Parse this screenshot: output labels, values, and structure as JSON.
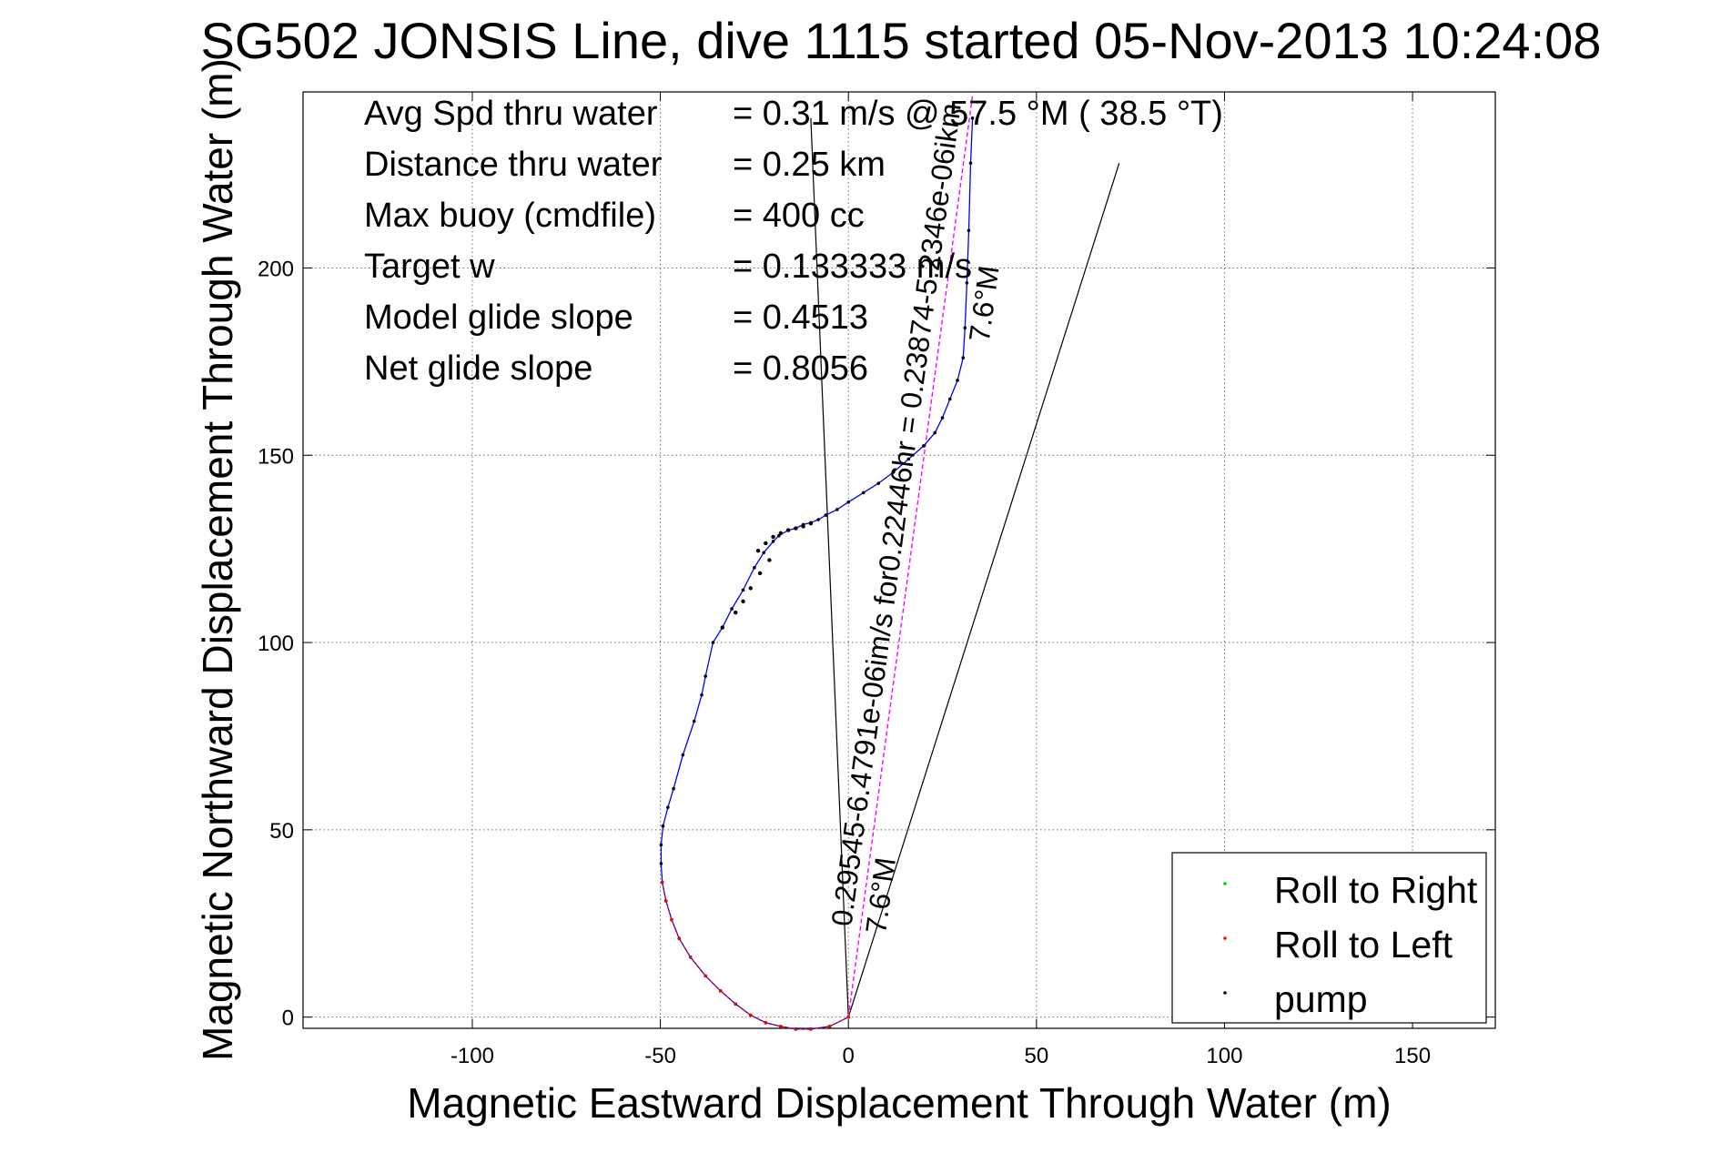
{
  "chart_data": {
    "type": "line",
    "title": "SG502 JONSIS Line, dive 1115 started 05-Nov-2013 10:24:08",
    "xlabel": "Magnetic Eastward Displacement Through Water (m)",
    "ylabel": "Magnetic Northward Displacement Through Water (m)",
    "xlim": [
      -145,
      172
    ],
    "ylim": [
      -3,
      247
    ],
    "xticks": [
      -100,
      -50,
      0,
      50,
      100,
      150
    ],
    "yticks": [
      0,
      50,
      100,
      150,
      200
    ],
    "xtick_labels": [
      "-100",
      "-50",
      "0",
      "50",
      "100",
      "150"
    ],
    "ytick_labels": [
      "0",
      "50",
      "100",
      "150",
      "200"
    ],
    "grid": true,
    "legend_position": "bottom-right",
    "legend": [
      {
        "label": "Roll to Right",
        "color": "#00cc00"
      },
      {
        "label": "Roll to Left",
        "color": "#ff0000"
      },
      {
        "label": "pump",
        "color": "#000000"
      }
    ],
    "info_lines": [
      {
        "label": "Avg Spd thru water",
        "value": "=  0.31 m/s @ 57.5 °M ( 38.5 °T)"
      },
      {
        "label": "Distance thru water",
        "value": "=  0.25 km"
      },
      {
        "label": "Max buoy (cmdfile)",
        "value": "= 400 cc"
      },
      {
        "label": "Target w",
        "value": "= 0.133333 m/s"
      },
      {
        "label": "Model glide slope",
        "value": "= 0.4513"
      },
      {
        "label": "Net glide slope",
        "value": "= 0.8056"
      }
    ],
    "track": {
      "name": "track",
      "color": "#0000ff",
      "x": [
        0,
        -5,
        -10,
        -14,
        -18,
        -22,
        -26,
        -30,
        -34,
        -38,
        -42,
        -45,
        -47,
        -48.5,
        -49.5,
        -49.8,
        -49.8,
        -49.3,
        -48,
        -46.5,
        -44,
        -41,
        -39,
        -38,
        -36,
        -33.5,
        -31,
        -28,
        -25,
        -22.5,
        -20,
        -18.5,
        -16,
        -14,
        -12,
        -10,
        -8,
        -6,
        -3,
        0,
        4,
        8,
        12,
        16,
        20,
        23,
        25,
        27,
        29,
        30.5,
        31,
        31.5,
        32,
        32.5,
        33
      ],
      "y": [
        0,
        -2.5,
        -3.2,
        -3.2,
        -2.5,
        -1.5,
        0.5,
        3.5,
        7,
        11,
        16,
        21,
        26,
        31,
        36,
        41,
        46,
        51,
        56,
        61,
        70,
        79,
        86,
        91,
        100,
        104,
        109,
        114,
        120,
        124,
        127,
        128.5,
        130,
        130.5,
        131.5,
        132,
        132.8,
        134,
        135.5,
        137.5,
        140,
        142.5,
        145.5,
        149,
        152.5,
        156,
        160,
        165,
        170,
        176,
        184,
        196,
        210,
        228,
        240
      ]
    },
    "roll_left_track": {
      "name": "Roll to Left",
      "color": "#ff0000",
      "x": [
        0,
        -5,
        -10,
        -14,
        -18,
        -22,
        -26,
        -30,
        -34,
        -38,
        -42,
        -45,
        -47,
        -48.5,
        -49.5
      ],
      "y": [
        0,
        -2.5,
        -3.2,
        -3.2,
        -2.5,
        -1.5,
        0.5,
        3.5,
        7,
        11,
        16,
        21,
        26,
        31,
        36
      ]
    },
    "pump_points": {
      "name": "pump",
      "color": "#000000",
      "x": [
        -10,
        -12,
        -14,
        -16,
        -18,
        -20,
        -22,
        -24,
        -33.5,
        -30,
        -28,
        -26,
        -23.5,
        -21
      ],
      "y": [
        131.8,
        131,
        130.5,
        130,
        129.2,
        128.2,
        126.5,
        124.5,
        104,
        108,
        111,
        114.5,
        118.5,
        122
      ]
    },
    "current_line": {
      "name": "current",
      "color": "#ff00ff",
      "x": [
        0,
        33
      ],
      "y": [
        0,
        246
      ]
    },
    "ref_lines": [
      {
        "name": "line-a",
        "color": "#000000",
        "x": [
          0,
          -10
        ],
        "y": [
          0,
          240
        ]
      },
      {
        "name": "line-b",
        "color": "#000000",
        "x": [
          0,
          72
        ],
        "y": [
          0,
          228
        ]
      }
    ],
    "annotations": [
      {
        "text": "0.29545-6.4791e-06im/s for0.22446hr = 0.23874-5.2346e-06ikm",
        "x": 0,
        "y": 24,
        "angle": 7.6
      },
      {
        "text": "7.6°M",
        "x": 5,
        "y": 22,
        "angle": 7.6
      },
      {
        "text": "7.6°M",
        "x": 32.5,
        "y": 180,
        "angle": 7.6
      }
    ]
  }
}
